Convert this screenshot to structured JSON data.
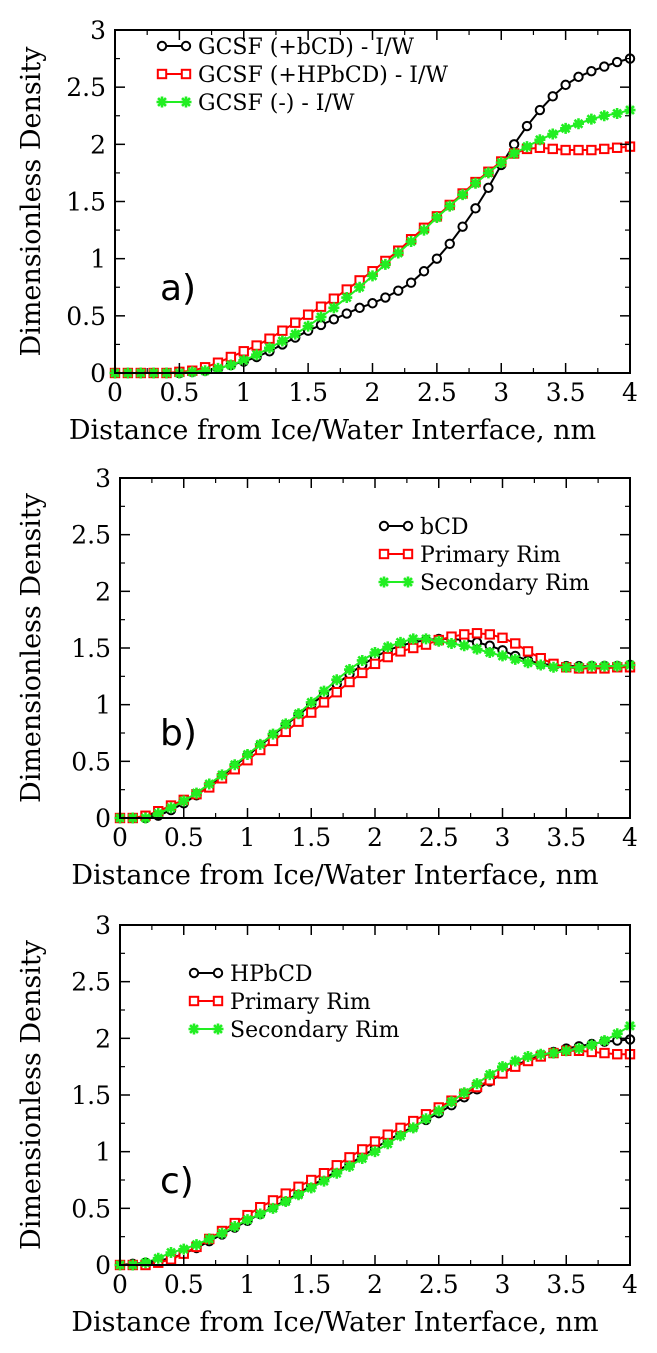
{
  "chart_data": [
    {
      "type": "line",
      "panel_label": "a)",
      "xlabel": "Distance from Ice/Water Interface, nm",
      "ylabel": "Dimensionless Density",
      "xlim": [
        0,
        4
      ],
      "ylim": [
        0,
        3
      ],
      "x_ticks": [
        "0",
        "0.5",
        "1",
        "1.5",
        "2",
        "2.5",
        "3",
        "3.5",
        "4"
      ],
      "y_ticks": [
        "0",
        "0.5",
        "1",
        "1.5",
        "2",
        "2.5",
        "3"
      ],
      "legend_position": "top-left",
      "x": [
        0.0,
        0.1,
        0.2,
        0.3,
        0.4,
        0.5,
        0.6,
        0.7,
        0.8,
        0.9,
        1.0,
        1.1,
        1.2,
        1.3,
        1.4,
        1.5,
        1.6,
        1.7,
        1.8,
        1.9,
        2.0,
        2.1,
        2.2,
        2.3,
        2.4,
        2.5,
        2.6,
        2.7,
        2.8,
        2.9,
        3.0,
        3.1,
        3.2,
        3.3,
        3.4,
        3.5,
        3.6,
        3.7,
        3.8,
        3.9,
        4.0
      ],
      "series": [
        {
          "name": "GCSF (+bCD) - I/W",
          "color": "#000000",
          "marker": "circle",
          "values": [
            0.0,
            0.0,
            0.0,
            0.0,
            0.0,
            0.0,
            0.01,
            0.02,
            0.04,
            0.07,
            0.1,
            0.14,
            0.19,
            0.25,
            0.31,
            0.37,
            0.42,
            0.47,
            0.52,
            0.57,
            0.61,
            0.66,
            0.72,
            0.79,
            0.89,
            1.0,
            1.13,
            1.28,
            1.44,
            1.62,
            1.82,
            2.0,
            2.16,
            2.3,
            2.42,
            2.52,
            2.59,
            2.64,
            2.68,
            2.72,
            2.75
          ]
        },
        {
          "name": "GCSF (+HPbCD) - I/W",
          "color": "#ff0000",
          "marker": "square",
          "values": [
            0.0,
            0.0,
            0.0,
            0.0,
            0.0,
            0.01,
            0.02,
            0.05,
            0.09,
            0.14,
            0.19,
            0.24,
            0.3,
            0.37,
            0.44,
            0.51,
            0.58,
            0.65,
            0.73,
            0.81,
            0.89,
            0.98,
            1.07,
            1.17,
            1.27,
            1.37,
            1.47,
            1.57,
            1.67,
            1.76,
            1.85,
            1.92,
            1.96,
            1.97,
            1.96,
            1.95,
            1.95,
            1.95,
            1.96,
            1.97,
            1.98
          ]
        },
        {
          "name": "GCSF (-) - I/W",
          "color": "#22ee22",
          "marker": "star",
          "values": [
            0.0,
            0.0,
            0.0,
            0.0,
            0.0,
            0.0,
            0.01,
            0.02,
            0.04,
            0.07,
            0.11,
            0.16,
            0.22,
            0.28,
            0.34,
            0.41,
            0.49,
            0.57,
            0.66,
            0.75,
            0.85,
            0.95,
            1.05,
            1.15,
            1.25,
            1.36,
            1.46,
            1.56,
            1.66,
            1.75,
            1.84,
            1.92,
            1.98,
            2.04,
            2.09,
            2.14,
            2.18,
            2.22,
            2.25,
            2.27,
            2.3
          ]
        }
      ]
    },
    {
      "type": "line",
      "panel_label": "b)",
      "xlabel": "Distance from Ice/Water Interface, nm",
      "ylabel": "Dimensionless Density",
      "xlim": [
        0,
        4
      ],
      "ylim": [
        0,
        3
      ],
      "x_ticks": [
        "0",
        "0.5",
        "1",
        "1.5",
        "2",
        "2.5",
        "3",
        "3.5",
        "4"
      ],
      "y_ticks": [
        "0",
        "0.5",
        "1",
        "1.5",
        "2",
        "2.5",
        "3"
      ],
      "legend_position": "top-right",
      "x": [
        0.0,
        0.1,
        0.2,
        0.3,
        0.4,
        0.5,
        0.6,
        0.7,
        0.8,
        0.9,
        1.0,
        1.1,
        1.2,
        1.3,
        1.4,
        1.5,
        1.6,
        1.7,
        1.8,
        1.9,
        2.0,
        2.1,
        2.2,
        2.3,
        2.4,
        2.5,
        2.6,
        2.7,
        2.8,
        2.9,
        3.0,
        3.1,
        3.2,
        3.3,
        3.4,
        3.5,
        3.6,
        3.7,
        3.8,
        3.9,
        4.0
      ],
      "series": [
        {
          "name": "bCD",
          "color": "#000000",
          "marker": "circle",
          "values": [
            0.0,
            0.0,
            0.0,
            0.02,
            0.07,
            0.13,
            0.2,
            0.28,
            0.37,
            0.46,
            0.55,
            0.64,
            0.73,
            0.82,
            0.91,
            1.0,
            1.09,
            1.18,
            1.27,
            1.35,
            1.42,
            1.48,
            1.52,
            1.55,
            1.57,
            1.58,
            1.58,
            1.57,
            1.55,
            1.52,
            1.48,
            1.43,
            1.39,
            1.36,
            1.35,
            1.34,
            1.34,
            1.34,
            1.34,
            1.34,
            1.35
          ]
        },
        {
          "name": "Primary Rim",
          "color": "#ff0000",
          "marker": "square",
          "values": [
            0.0,
            0.0,
            0.02,
            0.06,
            0.11,
            0.16,
            0.21,
            0.27,
            0.35,
            0.43,
            0.51,
            0.6,
            0.68,
            0.76,
            0.85,
            0.93,
            1.02,
            1.11,
            1.2,
            1.28,
            1.36,
            1.42,
            1.47,
            1.5,
            1.53,
            1.57,
            1.6,
            1.62,
            1.63,
            1.62,
            1.59,
            1.54,
            1.47,
            1.41,
            1.36,
            1.33,
            1.32,
            1.32,
            1.32,
            1.33,
            1.33
          ]
        },
        {
          "name": "Secondary Rim",
          "color": "#22ee22",
          "marker": "star",
          "values": [
            0.0,
            0.0,
            0.0,
            0.04,
            0.09,
            0.15,
            0.22,
            0.3,
            0.38,
            0.47,
            0.56,
            0.65,
            0.74,
            0.83,
            0.92,
            1.02,
            1.12,
            1.22,
            1.31,
            1.39,
            1.46,
            1.51,
            1.55,
            1.58,
            1.58,
            1.56,
            1.54,
            1.52,
            1.49,
            1.46,
            1.43,
            1.4,
            1.37,
            1.35,
            1.33,
            1.33,
            1.33,
            1.34,
            1.34,
            1.34,
            1.35
          ]
        }
      ]
    },
    {
      "type": "line",
      "panel_label": "c)",
      "xlabel": "Distance from Ice/Water Interface, nm",
      "ylabel": "Dimensionless Density",
      "xlim": [
        0,
        4
      ],
      "ylim": [
        0,
        3
      ],
      "x_ticks": [
        "0",
        "0.5",
        "1",
        "1.5",
        "2",
        "2.5",
        "3",
        "3.5",
        "4"
      ],
      "y_ticks": [
        "0",
        "0.5",
        "1",
        "1.5",
        "2",
        "2.5",
        "3"
      ],
      "legend_position": "top-left",
      "x": [
        0.0,
        0.1,
        0.2,
        0.3,
        0.4,
        0.5,
        0.6,
        0.7,
        0.8,
        0.9,
        1.0,
        1.1,
        1.2,
        1.3,
        1.4,
        1.5,
        1.6,
        1.7,
        1.8,
        1.9,
        2.0,
        2.1,
        2.2,
        2.3,
        2.4,
        2.5,
        2.6,
        2.7,
        2.8,
        2.9,
        3.0,
        3.1,
        3.2,
        3.3,
        3.4,
        3.5,
        3.6,
        3.7,
        3.8,
        3.9,
        4.0
      ],
      "series": [
        {
          "name": "HPbCD",
          "color": "#000000",
          "marker": "circle",
          "values": [
            0.0,
            0.01,
            0.02,
            0.04,
            0.06,
            0.1,
            0.15,
            0.21,
            0.27,
            0.33,
            0.39,
            0.45,
            0.51,
            0.57,
            0.63,
            0.7,
            0.76,
            0.83,
            0.89,
            0.96,
            1.03,
            1.1,
            1.16,
            1.22,
            1.28,
            1.34,
            1.41,
            1.48,
            1.55,
            1.62,
            1.69,
            1.76,
            1.81,
            1.85,
            1.88,
            1.91,
            1.93,
            1.95,
            1.97,
            1.98,
            1.99
          ]
        },
        {
          "name": "Primary Rim",
          "color": "#ff0000",
          "marker": "square",
          "values": [
            0.0,
            0.0,
            0.0,
            0.02,
            0.05,
            0.1,
            0.16,
            0.23,
            0.3,
            0.37,
            0.44,
            0.51,
            0.57,
            0.63,
            0.69,
            0.75,
            0.81,
            0.88,
            0.95,
            1.02,
            1.09,
            1.15,
            1.21,
            1.27,
            1.33,
            1.39,
            1.45,
            1.51,
            1.57,
            1.63,
            1.69,
            1.75,
            1.8,
            1.84,
            1.87,
            1.89,
            1.89,
            1.88,
            1.87,
            1.86,
            1.86
          ]
        },
        {
          "name": "Secondary Rim",
          "color": "#22ee22",
          "marker": "star",
          "values": [
            0.0,
            0.0,
            0.02,
            0.06,
            0.11,
            0.14,
            0.18,
            0.23,
            0.28,
            0.34,
            0.4,
            0.45,
            0.5,
            0.56,
            0.62,
            0.68,
            0.74,
            0.81,
            0.87,
            0.94,
            1.0,
            1.07,
            1.14,
            1.21,
            1.29,
            1.36,
            1.44,
            1.52,
            1.6,
            1.68,
            1.75,
            1.8,
            1.84,
            1.86,
            1.87,
            1.89,
            1.91,
            1.94,
            1.98,
            2.04,
            2.11
          ]
        }
      ]
    }
  ]
}
